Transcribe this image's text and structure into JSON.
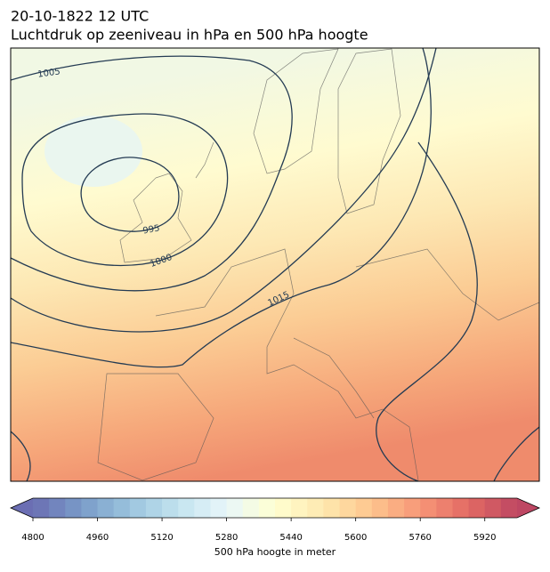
{
  "chart_data": {
    "type": "contour-map",
    "title": "20-10-1822 12 UTC",
    "subtitle": "Luchtdruk op zeeniveau in hPa en 500 hPa hoogte",
    "isobars": [
      1005,
      995,
      1000,
      1015
    ],
    "colorbar": {
      "label": "500 hPa hoogte in meter",
      "lim": [
        4800,
        6000
      ],
      "step": 40,
      "ticks": [
        4800,
        4960,
        5120,
        5280,
        5440,
        5600,
        5760,
        5920
      ]
    }
  }
}
